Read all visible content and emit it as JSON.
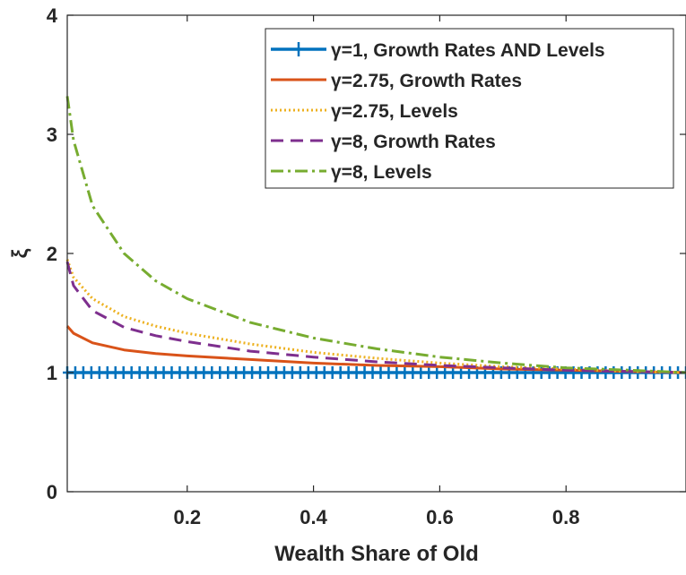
{
  "chart_data": {
    "type": "line",
    "title": "",
    "xlabel": "Wealth Share of Old",
    "ylabel": "ξ",
    "xlim": [
      0.01,
      0.99
    ],
    "ylim": [
      0,
      4
    ],
    "xticks": [
      0.2,
      0.4,
      0.6,
      0.8
    ],
    "xtick_labels": [
      "0.2",
      "0.4",
      "0.6",
      "0.8"
    ],
    "yticks": [
      0,
      1,
      2,
      3,
      4
    ],
    "ytick_labels": [
      "0",
      "1",
      "2",
      "3",
      "4"
    ],
    "grid": false,
    "legend_position": "top-right",
    "x": [
      0.01,
      0.02,
      0.05,
      0.1,
      0.15,
      0.2,
      0.3,
      0.4,
      0.5,
      0.6,
      0.7,
      0.8,
      0.9,
      0.99
    ],
    "series": [
      {
        "name": "γ=1, Growth Rates AND Levels",
        "color": "#0072BD",
        "style": "solid-plus",
        "values": [
          1.0,
          1.0,
          1.0,
          1.0,
          1.0,
          1.0,
          1.0,
          1.0,
          1.0,
          1.0,
          1.0,
          1.0,
          1.0,
          1.0
        ]
      },
      {
        "name": "γ=2.75, Growth Rates",
        "color": "#D95319",
        "style": "solid",
        "values": [
          1.39,
          1.33,
          1.25,
          1.19,
          1.16,
          1.14,
          1.11,
          1.08,
          1.06,
          1.05,
          1.03,
          1.02,
          1.01,
          1.0
        ]
      },
      {
        "name": "γ=2.75, Levels",
        "color": "#EDB120",
        "style": "dotted",
        "values": [
          1.95,
          1.8,
          1.62,
          1.47,
          1.39,
          1.33,
          1.24,
          1.17,
          1.12,
          1.08,
          1.05,
          1.03,
          1.01,
          1.0
        ]
      },
      {
        "name": "γ=8, Growth Rates",
        "color": "#7E2F8E",
        "style": "dashed",
        "values": [
          1.93,
          1.73,
          1.52,
          1.38,
          1.31,
          1.26,
          1.18,
          1.13,
          1.09,
          1.06,
          1.04,
          1.02,
          1.01,
          1.0
        ]
      },
      {
        "name": "γ=8, Levels",
        "color": "#77AC30",
        "style": "dashdot",
        "values": [
          3.32,
          2.95,
          2.4,
          2.0,
          1.77,
          1.62,
          1.42,
          1.29,
          1.2,
          1.13,
          1.08,
          1.04,
          1.02,
          1.0
        ]
      }
    ]
  }
}
